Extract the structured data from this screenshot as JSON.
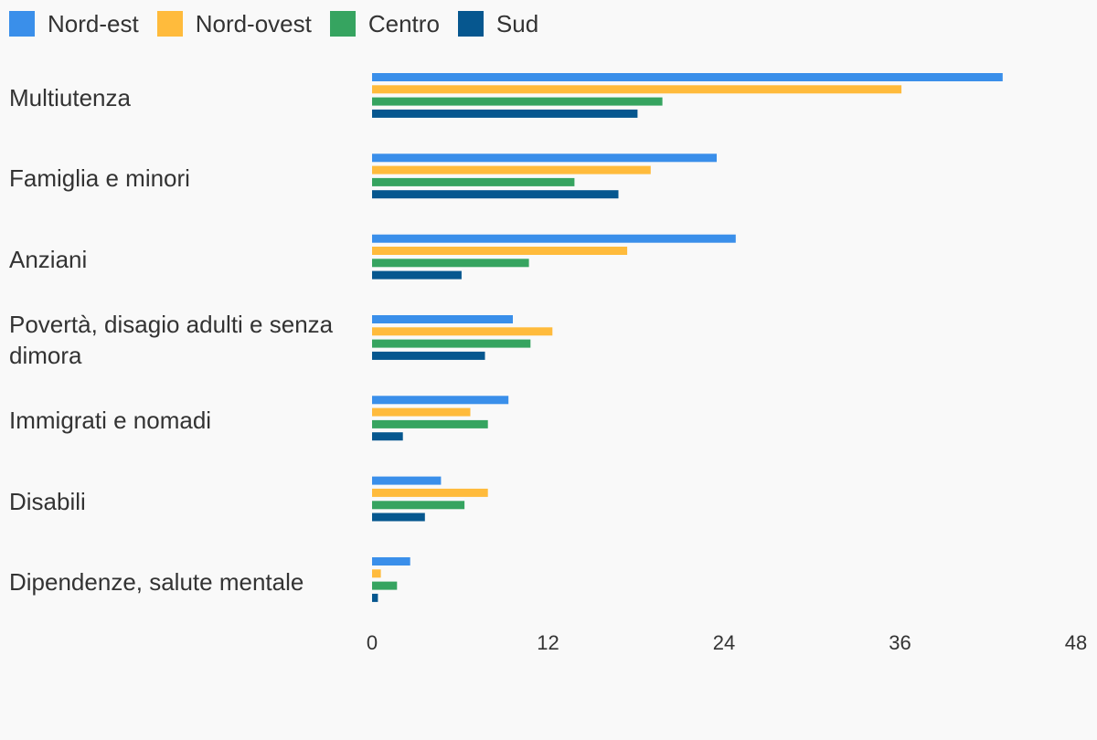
{
  "chart_data": {
    "type": "bar",
    "orientation": "horizontal",
    "categories": [
      "Multiutenza",
      "Famiglia e minori",
      "Anziani",
      "Povertà, disagio adulti e senza dimora",
      "Immigrati e nomadi",
      "Disabili",
      "Dipendenze, salute mentale"
    ],
    "series": [
      {
        "name": "Nord-est",
        "color": "#3a8fea",
        "values": [
          43.0,
          23.5,
          24.8,
          9.6,
          9.3,
          4.7,
          2.6
        ]
      },
      {
        "name": "Nord-ovest",
        "color": "#ffbb3c",
        "values": [
          36.1,
          19.0,
          17.4,
          12.3,
          6.7,
          7.9,
          0.6
        ]
      },
      {
        "name": "Centro",
        "color": "#36a460",
        "values": [
          19.8,
          13.8,
          10.7,
          10.8,
          7.9,
          6.3,
          1.7
        ]
      },
      {
        "name": "Sud",
        "color": "#06578f",
        "values": [
          18.1,
          16.8,
          6.1,
          7.7,
          2.1,
          3.6,
          0.4
        ]
      }
    ],
    "xlim": [
      0,
      48
    ],
    "xticks": [
      "0",
      "12",
      "24",
      "36",
      "48"
    ],
    "grid": false,
    "legend_position": "top-left",
    "title": "",
    "xlabel": "",
    "ylabel": ""
  }
}
